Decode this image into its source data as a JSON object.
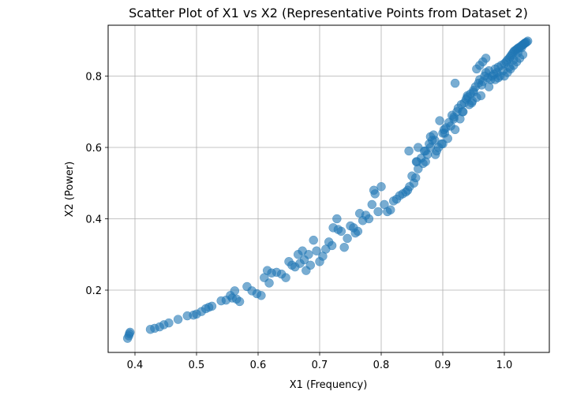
{
  "chart_data": {
    "type": "scatter",
    "title": "Scatter Plot of X1 vs X2 (Representative Points from Dataset 2)",
    "xlabel": "X1 (Frequency)",
    "ylabel": "X2 (Power)",
    "xlim": [
      0.356,
      1.072
    ],
    "ylim": [
      0.025,
      0.94
    ],
    "xticks": [
      0.4,
      0.5,
      0.6,
      0.7,
      0.8,
      0.9,
      1.0
    ],
    "xtick_labels": [
      "0.4",
      "0.5",
      "0.6",
      "0.7",
      "0.8",
      "0.9",
      "1.0"
    ],
    "yticks": [
      0.2,
      0.4,
      0.6,
      0.8
    ],
    "ytick_labels": [
      "0.2",
      "0.4",
      "0.6",
      "0.8"
    ],
    "grid": true,
    "legend": null,
    "marker_color": "#1f77b4",
    "marker_alpha": 0.6,
    "series": [
      {
        "name": "Dataset 2",
        "x": [
          0.388,
          0.39,
          0.391,
          0.392,
          0.425,
          0.432,
          0.44,
          0.447,
          0.455,
          0.47,
          0.485,
          0.495,
          0.5,
          0.508,
          0.515,
          0.52,
          0.525,
          0.54,
          0.548,
          0.555,
          0.558,
          0.562,
          0.565,
          0.57,
          0.582,
          0.59,
          0.598,
          0.605,
          0.61,
          0.615,
          0.618,
          0.622,
          0.63,
          0.638,
          0.645,
          0.65,
          0.655,
          0.66,
          0.665,
          0.668,
          0.672,
          0.675,
          0.678,
          0.682,
          0.685,
          0.69,
          0.695,
          0.7,
          0.705,
          0.71,
          0.715,
          0.72,
          0.722,
          0.728,
          0.73,
          0.735,
          0.74,
          0.745,
          0.75,
          0.755,
          0.758,
          0.762,
          0.765,
          0.77,
          0.775,
          0.78,
          0.785,
          0.788,
          0.79,
          0.795,
          0.8,
          0.805,
          0.81,
          0.815,
          0.82,
          0.825,
          0.83,
          0.835,
          0.84,
          0.843,
          0.846,
          0.85,
          0.853,
          0.856,
          0.858,
          0.86,
          0.865,
          0.868,
          0.87,
          0.872,
          0.875,
          0.878,
          0.88,
          0.883,
          0.885,
          0.888,
          0.89,
          0.893,
          0.895,
          0.898,
          0.9,
          0.903,
          0.905,
          0.908,
          0.91,
          0.913,
          0.915,
          0.918,
          0.92,
          0.923,
          0.925,
          0.928,
          0.93,
          0.933,
          0.935,
          0.938,
          0.94,
          0.943,
          0.945,
          0.948,
          0.95,
          0.953,
          0.955,
          0.958,
          0.96,
          0.963,
          0.965,
          0.968,
          0.97,
          0.973,
          0.975,
          0.978,
          0.98,
          0.983,
          0.985,
          0.988,
          0.99,
          0.993,
          0.995,
          0.998,
          1.0,
          1.003,
          1.005,
          1.008,
          1.01,
          1.012,
          1.014,
          1.016,
          1.018,
          1.02,
          1.022,
          1.024,
          1.026,
          1.028,
          1.03,
          1.032,
          1.034,
          1.036,
          1.038,
          1.005,
          1.01,
          1.015,
          1.02,
          1.025,
          1.03,
          0.955,
          0.96,
          0.965,
          0.97,
          0.92,
          0.9,
          0.88,
          0.86,
          0.845,
          0.94,
          0.95,
          0.99,
          1.0,
          1.008,
          1.015,
          1.022,
          1.028,
          1.033,
          0.985,
          0.975,
          0.962,
          0.947,
          0.932,
          0.918,
          0.902,
          0.887,
          0.872,
          0.857
        ],
        "y": [
          0.065,
          0.072,
          0.078,
          0.082,
          0.09,
          0.093,
          0.097,
          0.103,
          0.108,
          0.118,
          0.128,
          0.13,
          0.133,
          0.14,
          0.148,
          0.152,
          0.155,
          0.17,
          0.172,
          0.185,
          0.178,
          0.198,
          0.175,
          0.168,
          0.21,
          0.198,
          0.19,
          0.185,
          0.235,
          0.255,
          0.22,
          0.248,
          0.25,
          0.245,
          0.235,
          0.28,
          0.27,
          0.265,
          0.3,
          0.275,
          0.31,
          0.285,
          0.255,
          0.3,
          0.27,
          0.34,
          0.31,
          0.28,
          0.295,
          0.315,
          0.335,
          0.325,
          0.375,
          0.4,
          0.37,
          0.365,
          0.32,
          0.345,
          0.38,
          0.375,
          0.36,
          0.365,
          0.415,
          0.395,
          0.41,
          0.4,
          0.44,
          0.48,
          0.47,
          0.42,
          0.49,
          0.44,
          0.42,
          0.425,
          0.45,
          0.455,
          0.465,
          0.47,
          0.475,
          0.48,
          0.49,
          0.52,
          0.5,
          0.515,
          0.56,
          0.54,
          0.57,
          0.555,
          0.59,
          0.56,
          0.58,
          0.61,
          0.6,
          0.62,
          0.635,
          0.58,
          0.59,
          0.6,
          0.675,
          0.61,
          0.61,
          0.64,
          0.655,
          0.625,
          0.67,
          0.66,
          0.69,
          0.685,
          0.65,
          0.7,
          0.71,
          0.68,
          0.72,
          0.7,
          0.725,
          0.735,
          0.745,
          0.72,
          0.75,
          0.73,
          0.76,
          0.77,
          0.74,
          0.78,
          0.79,
          0.775,
          0.785,
          0.8,
          0.81,
          0.795,
          0.815,
          0.79,
          0.8,
          0.805,
          0.82,
          0.81,
          0.825,
          0.8,
          0.83,
          0.815,
          0.835,
          0.84,
          0.845,
          0.85,
          0.855,
          0.86,
          0.865,
          0.87,
          0.872,
          0.875,
          0.878,
          0.88,
          0.882,
          0.885,
          0.888,
          0.89,
          0.893,
          0.895,
          0.898,
          0.81,
          0.82,
          0.83,
          0.84,
          0.85,
          0.86,
          0.82,
          0.83,
          0.84,
          0.85,
          0.78,
          0.64,
          0.63,
          0.6,
          0.59,
          0.74,
          0.755,
          0.795,
          0.8,
          0.825,
          0.845,
          0.865,
          0.88,
          0.892,
          0.79,
          0.77,
          0.745,
          0.725,
          0.7,
          0.68,
          0.65,
          0.62,
          0.59,
          0.56
        ]
      }
    ]
  }
}
